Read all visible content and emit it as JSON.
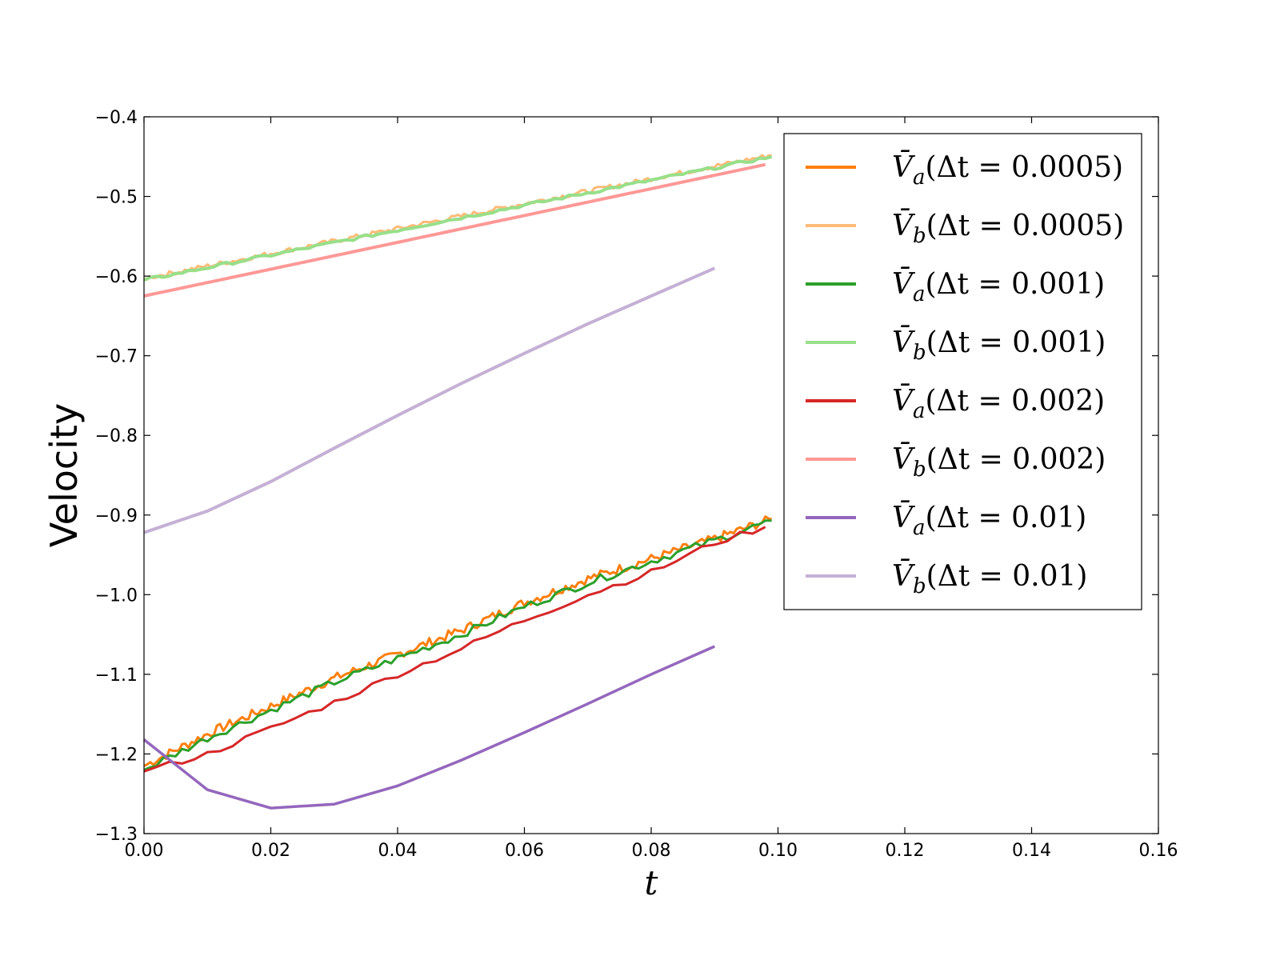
{
  "chart_data": {
    "type": "line",
    "title": "",
    "xlabel": "t",
    "ylabel": "Velocity",
    "xlim": [
      0.0,
      0.16
    ],
    "ylim": [
      -1.3,
      -0.4
    ],
    "x_ticks": [
      "0.00",
      "0.02",
      "0.04",
      "0.06",
      "0.08",
      "0.10",
      "0.12",
      "0.14",
      "0.16"
    ],
    "y_ticks": [
      "−0.4",
      "−0.5",
      "−0.6",
      "−0.7",
      "−0.8",
      "−0.9",
      "−1.0",
      "−1.1",
      "−1.2",
      "−1.3"
    ],
    "grid": false,
    "legend_position": "upper-right",
    "series": [
      {
        "name": "V̄a(Δt=0.0005)",
        "sym": "V̄",
        "sub": "a",
        "arg": "(Δt = 0.0005)",
        "color": "#ff7f0e",
        "width": 3,
        "x": [
          0.0,
          0.01,
          0.02,
          0.03,
          0.04,
          0.05,
          0.06,
          0.07,
          0.08,
          0.09,
          0.099
        ],
        "y": [
          -1.215,
          -1.175,
          -1.14,
          -1.105,
          -1.075,
          -1.045,
          -1.01,
          -0.98,
          -0.955,
          -0.93,
          -0.905
        ],
        "noise": 0.006,
        "steps": 198
      },
      {
        "name": "V̄b(Δt=0.0005)",
        "sym": "V̄",
        "sub": "b",
        "arg": "(Δt = 0.0005)",
        "color": "#ffbb78",
        "width": 3,
        "x": [
          0.0,
          0.099
        ],
        "y": [
          -0.603,
          -0.448
        ],
        "noise": 0.003,
        "steps": 198
      },
      {
        "name": "V̄a(Δt=0.001)",
        "sym": "V̄",
        "sub": "a",
        "arg": "(Δt = 0.001)",
        "color": "#2ca02c",
        "width": 3,
        "x": [
          0.0,
          0.01,
          0.02,
          0.03,
          0.04,
          0.05,
          0.06,
          0.07,
          0.08,
          0.09,
          0.099
        ],
        "y": [
          -1.22,
          -1.18,
          -1.145,
          -1.11,
          -1.08,
          -1.05,
          -1.015,
          -0.985,
          -0.958,
          -0.932,
          -0.907
        ],
        "noise": 0.005,
        "steps": 99
      },
      {
        "name": "V̄b(Δt=0.001)",
        "sym": "V̄",
        "sub": "b",
        "arg": "(Δt = 0.001)",
        "color": "#98df8a",
        "width": 4,
        "x": [
          0.0,
          0.099
        ],
        "y": [
          -0.605,
          -0.45
        ],
        "noise": 0.002,
        "steps": 99
      },
      {
        "name": "V̄a(Δt=0.002)",
        "sym": "V̄",
        "sub": "a",
        "arg": "(Δt = 0.002)",
        "color": "#d62728",
        "width": 3,
        "x": [
          0.0,
          0.01,
          0.02,
          0.03,
          0.04,
          0.05,
          0.06,
          0.07,
          0.08,
          0.09,
          0.098
        ],
        "y": [
          -1.222,
          -1.2,
          -1.168,
          -1.135,
          -1.1,
          -1.068,
          -1.032,
          -1.0,
          -0.972,
          -0.935,
          -0.915
        ],
        "noise": 0.004,
        "steps": 49
      },
      {
        "name": "V̄b(Δt=0.002)",
        "sym": "V̄",
        "sub": "b",
        "arg": "(Δt = 0.002)",
        "color": "#ff9896",
        "width": 4,
        "x": [
          0.0,
          0.098
        ],
        "y": [
          -0.625,
          -0.46
        ],
        "noise": 0.0,
        "steps": 49
      },
      {
        "name": "V̄a(Δt=0.01)",
        "sym": "V̄",
        "sub": "a",
        "arg": "(Δt = 0.01)",
        "color": "#9467bd",
        "width": 3.5,
        "x": [
          0.0,
          0.01,
          0.02,
          0.03,
          0.04,
          0.05,
          0.06,
          0.07,
          0.08,
          0.09
        ],
        "y": [
          -1.182,
          -1.245,
          -1.268,
          -1.263,
          -1.24,
          -1.208,
          -1.173,
          -1.137,
          -1.1,
          -1.065
        ],
        "noise": 0.0,
        "steps": 0
      },
      {
        "name": "V̄b(Δt=0.01)",
        "sym": "V̄",
        "sub": "b",
        "arg": "(Δt = 0.01)",
        "color": "#c5b0d5",
        "width": 4,
        "x": [
          0.0,
          0.01,
          0.02,
          0.03,
          0.04,
          0.05,
          0.06,
          0.07,
          0.08,
          0.09
        ],
        "y": [
          -0.922,
          -0.895,
          -0.858,
          -0.816,
          -0.775,
          -0.735,
          -0.697,
          -0.66,
          -0.625,
          -0.59
        ],
        "noise": 0.0,
        "steps": 0
      }
    ]
  }
}
